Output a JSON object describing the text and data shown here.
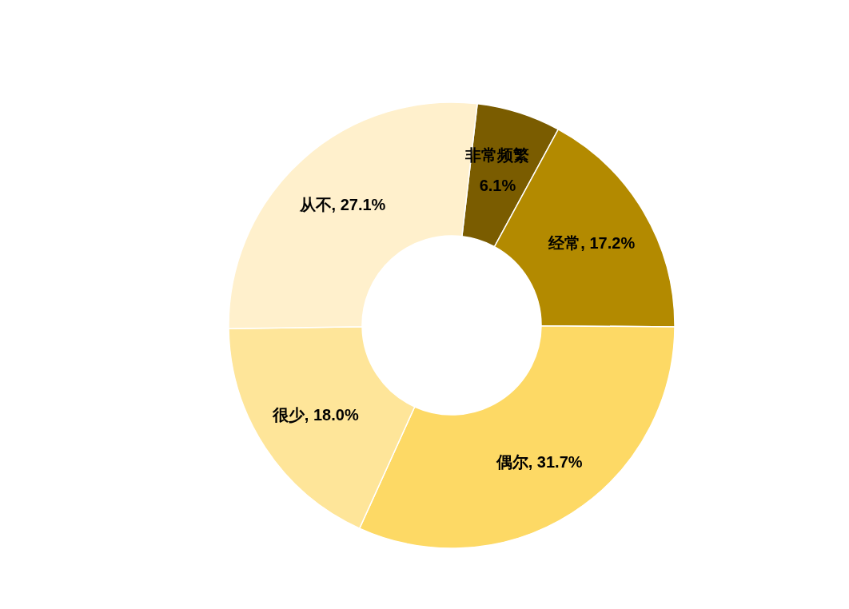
{
  "chart_data": {
    "type": "donut",
    "categories": [
      "非常频繁",
      "经常",
      "偶尔",
      "很少",
      "从不"
    ],
    "values": [
      6.1,
      17.2,
      31.7,
      18.0,
      27.1
    ],
    "value_labels": [
      "6.1%",
      ", 17.2%",
      ", 31.7%",
      ", 18.0%",
      ", 27.1%"
    ],
    "colors": [
      "#7a5c00",
      "#b38a00",
      "#fdd965",
      "#fee599",
      "#fff0cc"
    ]
  }
}
